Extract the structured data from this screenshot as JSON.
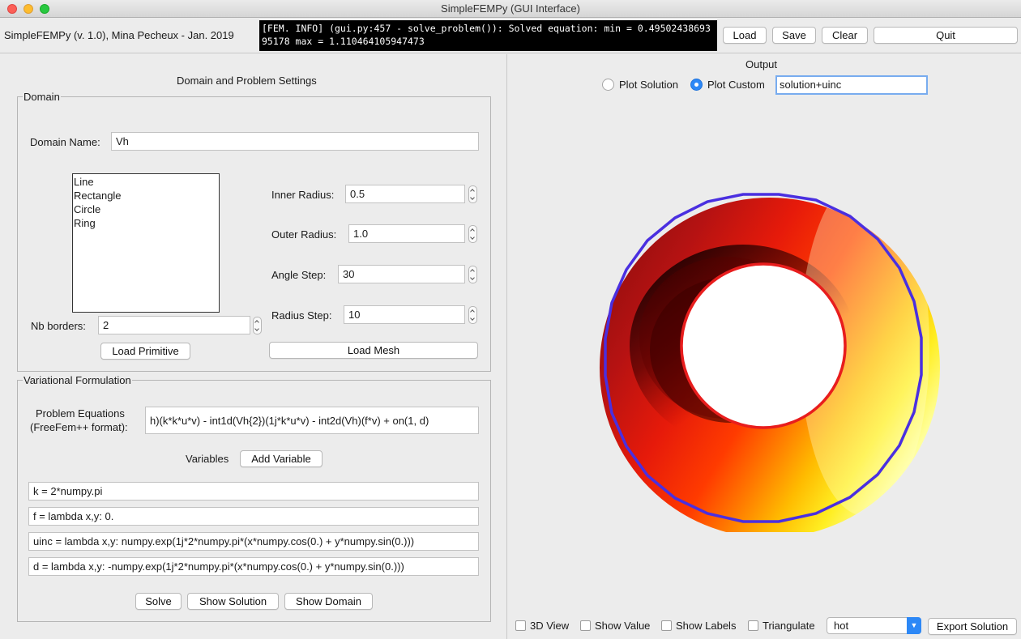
{
  "window": {
    "title": "SimpleFEMPy (GUI Interface)"
  },
  "toolbar": {
    "app_label": "SimpleFEMPy (v. 1.0), Mina Pecheux - Jan. 2019",
    "console_text": "[FEM.   INFO] (gui.py:457 - solve_problem()): Solved equation: min = 0.4950243869395178 max = 1.110464105947473",
    "load_label": "Load",
    "save_label": "Save",
    "clear_label": "Clear",
    "quit_label": "Quit"
  },
  "left": {
    "heading": "Domain and Problem Settings",
    "domain": {
      "legend": "Domain",
      "name_label": "Domain Name:",
      "name_value": "Vh",
      "primitives": [
        "Line",
        "Rectangle",
        "Circle",
        "Ring"
      ],
      "nb_borders_label": "Nb borders:",
      "nb_borders_value": "2",
      "inner_radius_label": "Inner Radius:",
      "inner_radius_value": "0.5",
      "outer_radius_label": "Outer Radius:",
      "outer_radius_value": "1.0",
      "angle_step_label": "Angle Step:",
      "angle_step_value": "30",
      "radius_step_label": "Radius Step:",
      "radius_step_value": "10",
      "load_primitive_label": "Load Primitive",
      "load_mesh_label": "Load Mesh"
    },
    "variational": {
      "legend": "Variational Formulation",
      "equations_label_1": "Problem Equations",
      "equations_label_2": "(FreeFem++ format):",
      "equations_value": "h)(k*k*u*v) - int1d(Vh{2})(1j*k*u*v) - int2d(Vh)(f*v) + on(1, d)",
      "variables_label": "Variables",
      "add_variable_label": "Add Variable",
      "variables": [
        "k = 2*numpy.pi",
        "f = lambda x,y: 0.",
        "uinc = lambda x,y: numpy.exp(1j*2*numpy.pi*(x*numpy.cos(0.) + y*numpy.sin(0.)))",
        "d = lambda x,y: -numpy.exp(1j*2*numpy.pi*(x*numpy.cos(0.) + y*numpy.sin(0.)))"
      ],
      "solve_label": "Solve",
      "show_solution_label": "Show Solution",
      "show_domain_label": "Show Domain"
    }
  },
  "right": {
    "output_label": "Output",
    "plot_solution_label": "Plot Solution",
    "plot_custom_label": "Plot Custom",
    "custom_expression": "solution+uinc",
    "selected_plot": "custom",
    "colormap": "hot",
    "options": {
      "view3d_label": "3D View",
      "show_value_label": "Show Value",
      "show_labels_label": "Show Labels",
      "triangulate_label": "Triangulate"
    },
    "export_label": "Export Solution"
  },
  "colors": {
    "outer_boundary": "#4a2fe0",
    "inner_boundary": "#e81d1d",
    "accent": "#2d88f6",
    "console_bg": "#000000"
  }
}
